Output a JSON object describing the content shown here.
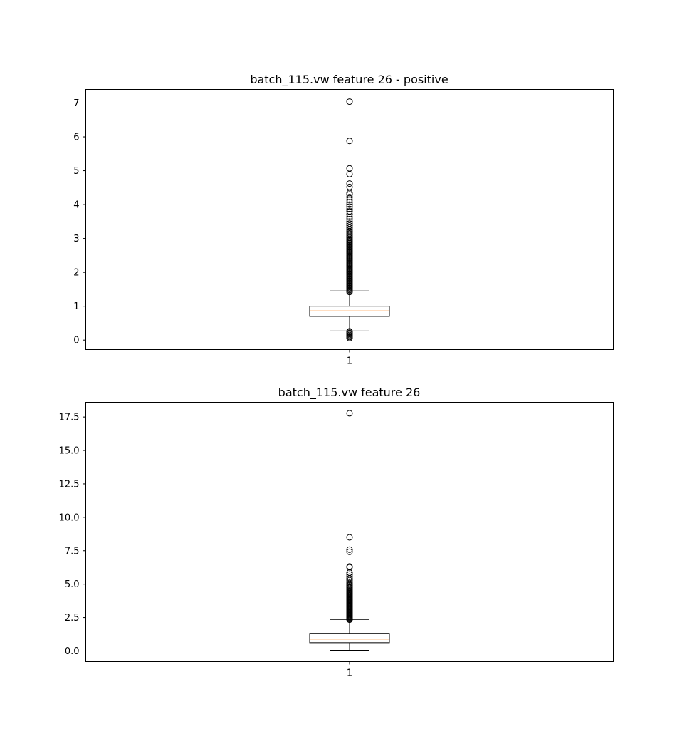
{
  "chart_data": [
    {
      "type": "box",
      "title": "batch_115.vw feature 26 - positive",
      "xlabel": "",
      "ylabel": "",
      "categories": [
        "1"
      ],
      "ylim": [
        -0.28,
        7.4
      ],
      "yticks": [
        0,
        1,
        2,
        3,
        4,
        5,
        6,
        7
      ],
      "ytick_labels": [
        "0",
        "1",
        "2",
        "3",
        "4",
        "5",
        "6",
        "7"
      ],
      "grid": false,
      "box": {
        "whisker_low": 0.27,
        "q1": 0.7,
        "median": 0.86,
        "q3": 1.0,
        "whisker_high": 1.45
      },
      "outliers_high": [
        1.42,
        1.45,
        1.48,
        1.51,
        1.54,
        1.57,
        1.6,
        1.63,
        1.66,
        1.69,
        1.72,
        1.75,
        1.78,
        1.81,
        1.84,
        1.87,
        1.9,
        1.93,
        1.96,
        1.99,
        2.02,
        2.05,
        2.08,
        2.11,
        2.14,
        2.17,
        2.2,
        2.23,
        2.26,
        2.29,
        2.32,
        2.35,
        2.38,
        2.41,
        2.44,
        2.47,
        2.5,
        2.53,
        2.56,
        2.59,
        2.62,
        2.65,
        2.68,
        2.71,
        2.74,
        2.77,
        2.8,
        2.83,
        2.86,
        2.89,
        2.92,
        2.95,
        2.98,
        3.02,
        3.06,
        3.1,
        3.14,
        3.18,
        3.22,
        3.27,
        3.32,
        3.38,
        3.44,
        3.5,
        3.57,
        3.64,
        3.72,
        3.8,
        3.87,
        3.94,
        4.0,
        4.07,
        4.14,
        4.22,
        4.3,
        4.34,
        4.52,
        4.62,
        4.9,
        5.07,
        5.88,
        7.04
      ],
      "outliers_low": [
        0.06,
        0.09,
        0.12,
        0.15,
        0.18,
        0.21,
        0.24,
        0.26
      ],
      "colors": {
        "median": "#ff7f0e",
        "box": "#000000"
      }
    },
    {
      "type": "box",
      "title": "batch_115.vw feature 26",
      "xlabel": "",
      "ylabel": "",
      "categories": [
        "1"
      ],
      "ylim": [
        -0.8,
        18.6
      ],
      "yticks": [
        0,
        2.5,
        5,
        7.5,
        10,
        12.5,
        15,
        17.5
      ],
      "ytick_labels": [
        "0.0",
        "2.5",
        "5.0",
        "7.5",
        "10.0",
        "12.5",
        "15.0",
        "17.5"
      ],
      "grid": false,
      "box": {
        "whisker_low": 0.05,
        "q1": 0.62,
        "median": 0.9,
        "q3": 1.32,
        "whisker_high": 2.36
      },
      "outliers_high": [
        2.34,
        2.4,
        2.46,
        2.52,
        2.58,
        2.64,
        2.7,
        2.76,
        2.82,
        2.88,
        2.94,
        3.0,
        3.06,
        3.12,
        3.18,
        3.24,
        3.3,
        3.36,
        3.42,
        3.48,
        3.54,
        3.6,
        3.66,
        3.72,
        3.78,
        3.84,
        3.9,
        3.96,
        4.02,
        4.08,
        4.14,
        4.2,
        4.26,
        4.32,
        4.38,
        4.44,
        4.5,
        4.58,
        4.66,
        4.74,
        4.82,
        4.9,
        4.98,
        5.08,
        5.18,
        5.3,
        5.42,
        5.56,
        5.72,
        5.86,
        6.26,
        6.32,
        7.42,
        7.58,
        8.5,
        17.78
      ],
      "outliers_low": [],
      "colors": {
        "median": "#ff7f0e",
        "box": "#000000"
      }
    }
  ]
}
